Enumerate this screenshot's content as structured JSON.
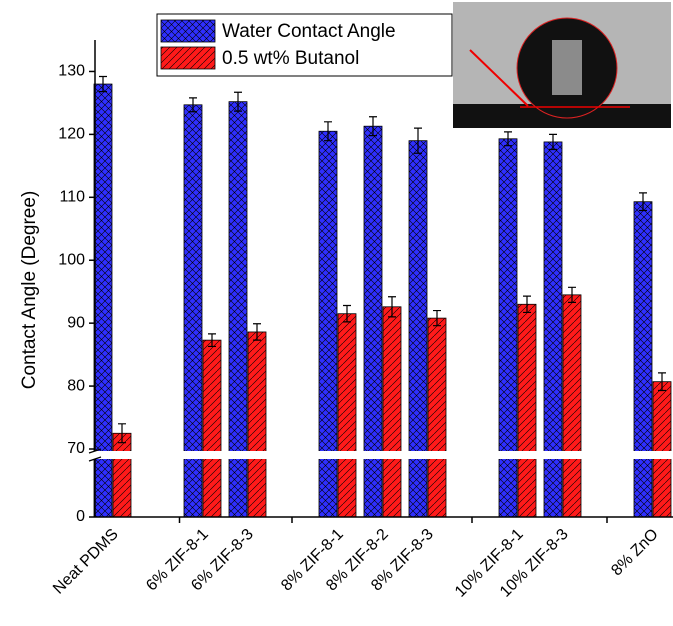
{
  "chart_data": {
    "type": "bar",
    "y_label": "Contact Angle (Degree)",
    "categories": [
      "Neat PDMS",
      "6% ZIF-8-1",
      "6% ZIF-8-3",
      "8% ZIF-8-1",
      "8% ZIF-8-2",
      "8% ZIF-8-3",
      "10% ZIF-8-1",
      "10% ZIF-8-3",
      "8% ZnO"
    ],
    "series": [
      {
        "name": "Water Contact Angle",
        "color": "#2f2fff",
        "values": [
          128,
          124.7,
          125.2,
          120.5,
          121.3,
          119,
          119.3,
          118.8,
          109.3
        ],
        "errors": [
          1.2,
          1.1,
          1.5,
          1.5,
          1.5,
          2,
          1.1,
          1.2,
          1.4
        ]
      },
      {
        "name": "0.5 wt% Butanol",
        "color": "#ff1a1a",
        "values": [
          72.5,
          87.3,
          88.6,
          91.5,
          92.6,
          90.8,
          93,
          94.5,
          80.7
        ],
        "errors": [
          1.5,
          1,
          1.3,
          1.3,
          1.6,
          1.2,
          1.3,
          1.2,
          1.4
        ]
      }
    ],
    "ylim": [
      0,
      135
    ],
    "y_break": 70,
    "yticks": [
      0,
      70,
      80,
      90,
      100,
      110,
      120,
      130
    ],
    "legend": "upper-left"
  }
}
